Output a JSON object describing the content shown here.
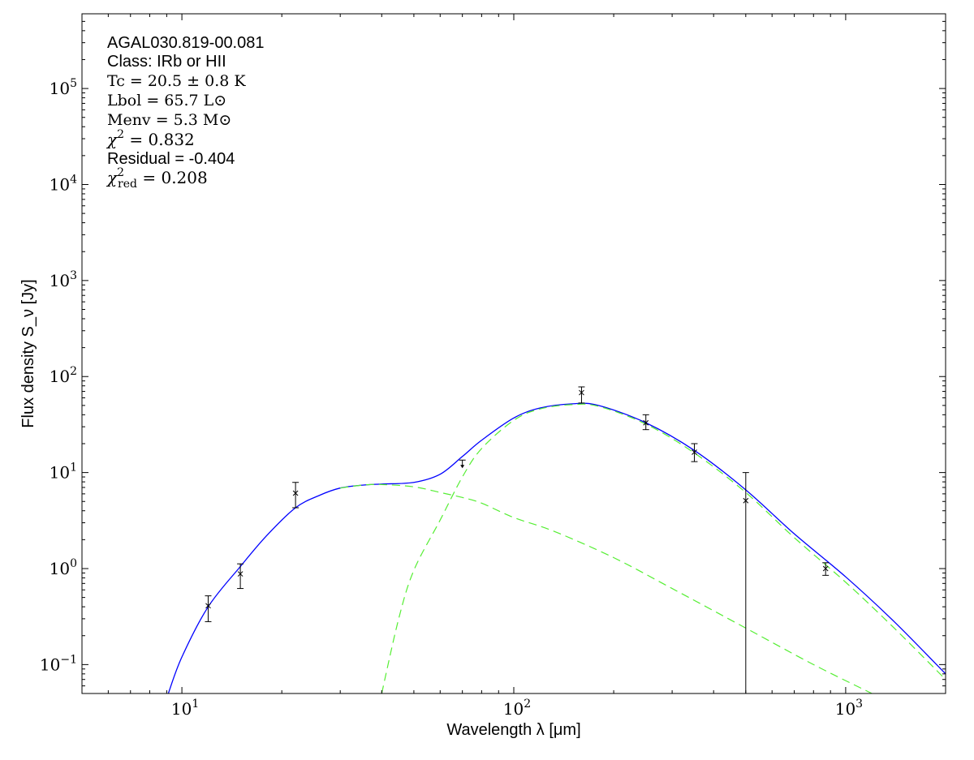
{
  "chart_data": {
    "type": "scatter",
    "xlabel": "Wavelength λ [μm]",
    "ylabel": "Flux density S_ν [Jy]",
    "xscale": "log",
    "yscale": "log",
    "xlim": [
      5,
      2000
    ],
    "ylim": [
      0.05,
      600000
    ],
    "grid": false,
    "x_ticks": [
      {
        "value": 10,
        "base": "10",
        "exp": "1"
      },
      {
        "value": 100,
        "base": "10",
        "exp": "2"
      },
      {
        "value": 1000,
        "base": "10",
        "exp": "3"
      }
    ],
    "y_ticks": [
      {
        "value": 0.1,
        "base": "10",
        "exp": "−1"
      },
      {
        "value": 1,
        "base": "10",
        "exp": "0"
      },
      {
        "value": 10,
        "base": "10",
        "exp": "1"
      },
      {
        "value": 100,
        "base": "10",
        "exp": "2"
      },
      {
        "value": 1000,
        "base": "10",
        "exp": "3"
      },
      {
        "value": 10000,
        "base": "10",
        "exp": "4"
      },
      {
        "value": 100000,
        "base": "10",
        "exp": "5"
      }
    ],
    "annotations": {
      "source": "AGAL030.819-00.081",
      "class": "Class: IRb or HII",
      "tc": "Tc = 20.5 ± 0.8 K",
      "lbol": "Lbol = 65.7 L⊙",
      "menv": "Menv = 5.3 M⊙",
      "chi2": "χ² = 0.832",
      "residual": "Residual = -0.404",
      "chi2red": "χ²red = 0.208"
    },
    "annotation_parts": {
      "tc": {
        "sym": "T",
        "sub": "c",
        "rest": " = 20.5 ± 0.8 K"
      },
      "lbol": {
        "sym": "L",
        "sub": "bol",
        "rest": " = 65.7 L⊙"
      },
      "menv": {
        "sym": "M",
        "sub": "env",
        "rest": " = 5.3 M⊙"
      },
      "chi2": {
        "sym": "χ",
        "sup": "2",
        "rest": " = 0.832"
      },
      "chi2red": {
        "sym": "χ",
        "sup": "2",
        "sub": "red",
        "rest": " = 0.208"
      }
    },
    "points": [
      {
        "x": 12,
        "y": 0.41,
        "ylo": 0.28,
        "yhi": 0.52
      },
      {
        "x": 15,
        "y": 0.88,
        "ylo": 0.62,
        "yhi": 1.12
      },
      {
        "x": 22,
        "y": 6.1,
        "ylo": 4.3,
        "yhi": 7.9
      },
      {
        "x": 70,
        "y": 12,
        "upper_limit": true
      },
      {
        "x": 160,
        "y": 68,
        "ylo": 53,
        "yhi": 78
      },
      {
        "x": 250,
        "y": 33,
        "ylo": 28,
        "yhi": 40
      },
      {
        "x": 350,
        "y": 16.3,
        "ylo": 13,
        "yhi": 20
      },
      {
        "x": 500,
        "y": 5.1,
        "ylo": 0.01,
        "yhi": 10
      },
      {
        "x": 870,
        "y": 1.0,
        "ylo": 0.85,
        "yhi": 1.15
      }
    ],
    "series": [
      {
        "style": "solid",
        "color": "#0000ff",
        "x": [
          9.1,
          10,
          12,
          15,
          18,
          22,
          26,
          30,
          35,
          40,
          50,
          60,
          70,
          80,
          100,
          120,
          150,
          180,
          250,
          350,
          500,
          700,
          1000,
          1400,
          2000
        ],
        "y": [
          0.05,
          0.12,
          0.4,
          1.05,
          2.2,
          4.3,
          5.8,
          6.9,
          7.4,
          7.6,
          7.9,
          9.6,
          14.7,
          21.7,
          37,
          47,
          52,
          50,
          33,
          17,
          6.6,
          2.3,
          0.82,
          0.28,
          0.08
        ]
      },
      {
        "style": "dashed",
        "color": "#55ee33",
        "x": [
          40,
          45,
          50,
          60,
          70,
          80,
          100,
          120,
          150,
          180,
          250,
          350,
          500,
          700,
          1000,
          1400,
          2000
        ],
        "y": [
          0.05,
          0.3,
          0.96,
          3.2,
          9,
          17.8,
          35,
          46,
          51,
          49,
          32,
          16,
          6.2,
          2.1,
          0.72,
          0.24,
          0.07
        ]
      },
      {
        "style": "dashed",
        "color": "#55ee33",
        "x": [
          30,
          35,
          40,
          50,
          60,
          70,
          80,
          100,
          132,
          200,
          300,
          500,
          800,
          1200
        ],
        "y": [
          6.9,
          7.4,
          7.5,
          7.1,
          6.2,
          5.5,
          4.8,
          3.4,
          2.45,
          1.3,
          0.62,
          0.24,
          0.1,
          0.05
        ]
      }
    ]
  }
}
